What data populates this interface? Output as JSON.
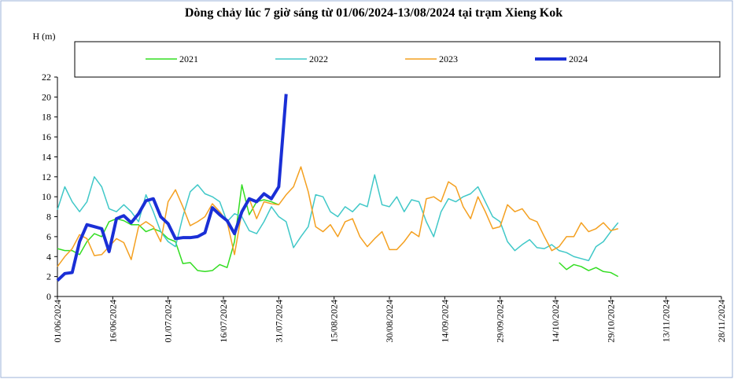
{
  "chart_data": {
    "type": "line",
    "title": "Dòng chảy lúc 7 giờ sáng từ 01/06/2024-13/08/2024 tại trạm Xieng Kok",
    "y_label": "H (m)",
    "x": [
      "01/06/2024",
      "03/06/2024",
      "05/06/2024",
      "07/06/2024",
      "09/06/2024",
      "11/06/2024",
      "13/06/2024",
      "15/06/2024",
      "17/06/2024",
      "19/06/2024",
      "21/06/2024",
      "23/06/2024",
      "25/06/2024",
      "27/06/2024",
      "29/06/2024",
      "01/07/2024",
      "03/07/2024",
      "05/07/2024",
      "07/07/2024",
      "09/07/2024",
      "11/07/2024",
      "13/07/2024",
      "15/07/2024",
      "17/07/2024",
      "19/07/2024",
      "21/07/2024",
      "23/07/2024",
      "25/07/2024",
      "27/07/2024",
      "29/07/2024",
      "31/07/2024",
      "02/08/2024",
      "04/08/2024",
      "06/08/2024",
      "08/08/2024",
      "10/08/2024",
      "12/08/2024",
      "14/08/2024",
      "16/08/2024",
      "18/08/2024",
      "20/08/2024",
      "22/08/2024",
      "24/08/2024",
      "26/08/2024",
      "28/08/2024",
      "30/08/2024",
      "01/09/2024",
      "03/09/2024",
      "05/09/2024",
      "07/09/2024",
      "09/09/2024",
      "11/09/2024",
      "13/09/2024",
      "15/09/2024",
      "17/09/2024",
      "19/09/2024",
      "21/09/2024",
      "23/09/2024",
      "25/09/2024",
      "27/09/2024",
      "29/09/2024",
      "01/10/2024",
      "03/10/2024",
      "05/10/2024",
      "07/10/2024",
      "09/10/2024",
      "11/10/2024",
      "13/10/2024",
      "15/10/2024",
      "17/10/2024",
      "19/10/2024",
      "21/10/2024",
      "23/10/2024",
      "25/10/2024",
      "27/10/2024",
      "29/10/2024",
      "31/10/2024"
    ],
    "series": [
      {
        "name": "2021",
        "color": "#33dd22",
        "width": 1.5,
        "values": [
          4.8,
          4.6,
          4.6,
          4.2,
          5.5,
          6.3,
          6.0,
          7.5,
          7.8,
          7.6,
          7.2,
          7.2,
          6.5,
          6.8,
          6.5,
          5.8,
          5.5,
          3.3,
          3.4,
          2.6,
          2.5,
          2.6,
          3.2,
          2.9,
          5.5,
          11.2,
          8.2,
          9.5,
          9.7,
          9.5,
          9.2,
          null,
          null,
          null,
          null,
          null,
          null,
          null,
          null,
          null,
          null,
          null,
          null,
          null,
          null,
          null,
          null,
          null,
          null,
          null,
          null,
          null,
          null,
          null,
          null,
          null,
          null,
          null,
          null,
          null,
          null,
          null,
          null,
          null,
          null,
          null,
          null,
          null,
          3.4,
          2.7,
          3.2,
          3.0,
          2.6,
          2.9,
          2.5,
          2.4,
          2.0
        ]
      },
      {
        "name": "2022",
        "color": "#40c8c8",
        "width": 1.5,
        "values": [
          8.7,
          11,
          9.5,
          8.5,
          9.5,
          12,
          11,
          8.8,
          8.5,
          9.2,
          8.5,
          7.5,
          10.2,
          8.5,
          6.5,
          5.5,
          5.0,
          8.0,
          10.5,
          11.2,
          10.3,
          10.0,
          9.5,
          7.5,
          8.3,
          8.0,
          6.6,
          6.3,
          7.5,
          9.0,
          8.0,
          7.5,
          4.9,
          6.0,
          7.0,
          10.2,
          10.0,
          8.5,
          8.0,
          9.0,
          8.5,
          9.3,
          9.0,
          12.2,
          9.2,
          9.0,
          10.0,
          8.5,
          9.7,
          9.5,
          7.5,
          6.0,
          8.5,
          9.8,
          9.5,
          10.0,
          10.3,
          11.0,
          9.5,
          8.0,
          7.5,
          5.5,
          4.6,
          5.2,
          5.7,
          4.9,
          4.8,
          5.2,
          4.6,
          4.4,
          4.0,
          3.8,
          3.6,
          5.0,
          5.5,
          6.5,
          7.4
        ]
      },
      {
        "name": "2023",
        "color": "#f4a020",
        "width": 1.5,
        "values": [
          3.0,
          4.0,
          4.8,
          6.2,
          5.8,
          4.1,
          4.2,
          5.0,
          5.8,
          5.4,
          3.7,
          7.0,
          7.5,
          7.0,
          5.5,
          9.5,
          10.7,
          9.0,
          7.1,
          7.5,
          8.0,
          9.3,
          8.5,
          7.5,
          4.2,
          8.5,
          9.8,
          7.8,
          9.5,
          9.3,
          9.2,
          10.2,
          11.0,
          13.0,
          10.5,
          7.0,
          6.5,
          7.2,
          6.0,
          7.5,
          7.8,
          6.0,
          5.0,
          5.8,
          6.5,
          4.7,
          4.7,
          5.5,
          6.5,
          6.0,
          9.8,
          10.0,
          9.5,
          11.5,
          11.0,
          9.0,
          7.8,
          10.0,
          8.5,
          6.8,
          7.0,
          9.2,
          8.5,
          8.8,
          7.8,
          7.5,
          6.0,
          4.6,
          5.0,
          6.0,
          6.0,
          7.4,
          6.5,
          6.8,
          7.4,
          6.6,
          6.8
        ]
      },
      {
        "name": "2024",
        "color": "#1a2fd6",
        "width": 4,
        "values": [
          1.6,
          2.3,
          2.4,
          5.5,
          7.2,
          7.0,
          6.8,
          4.5,
          7.8,
          8.1,
          7.4,
          8.3,
          9.6,
          9.8,
          8.0,
          7.3,
          5.8,
          5.9,
          5.9,
          6.0,
          6.4,
          8.9,
          8.2,
          7.6,
          6.3,
          8.5,
          9.8,
          9.5,
          10.3,
          9.8,
          11.0,
          20.3,
          null,
          null,
          null,
          null,
          null,
          null,
          null,
          null,
          null,
          null,
          null,
          null,
          null,
          null,
          null,
          null,
          null,
          null,
          null,
          null,
          null,
          null,
          null,
          null,
          null,
          null,
          null,
          null,
          null,
          null,
          null,
          null,
          null,
          null,
          null,
          null,
          null,
          null,
          null,
          null,
          null,
          null,
          null,
          null,
          null
        ]
      }
    ],
    "xlim": [
      "01/06/2024",
      "28/11/2024"
    ],
    "xticks": [
      "01/06/2024",
      "16/06/2024",
      "01/07/2024",
      "16/07/2024",
      "31/07/2024",
      "15/08/2024",
      "30/08/2024",
      "14/09/2024",
      "29/09/2024",
      "14/10/2024",
      "29/10/2024",
      "13/11/2024",
      "28/11/2024"
    ],
    "ylim": [
      0,
      22
    ],
    "yticks": [
      0,
      2,
      4,
      6,
      8,
      10,
      12,
      14,
      16,
      18,
      20,
      22
    ],
    "grid": false
  }
}
